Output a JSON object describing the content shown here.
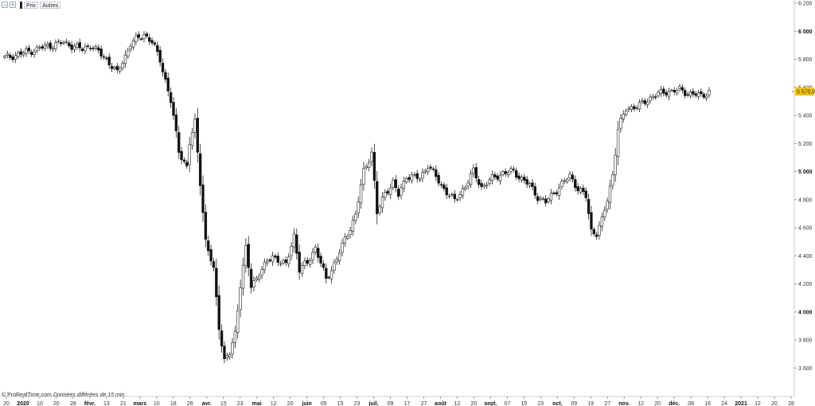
{
  "toolbar": {
    "buttons": [
      "zoom-out",
      "zoom-in"
    ],
    "price_label": "Prix",
    "others_label": "Autres"
  },
  "footer": {
    "source": "© ProRealTime.com",
    "delay_note": "Données différées de 15 min"
  },
  "colors": {
    "up": "#ffffff",
    "down": "#111111",
    "wick": "#222222",
    "axis": "#cfcfcf",
    "price_tag": "#f2c40c"
  },
  "chart_data": {
    "type": "candlestick",
    "ylim": [
      3500,
      6200
    ],
    "y_ticks": [
      {
        "v": 6200,
        "label": "6 200",
        "bold": false
      },
      {
        "v": 6000,
        "label": "6 000",
        "bold": true
      },
      {
        "v": 5800,
        "label": "5 800",
        "bold": false
      },
      {
        "v": 5600,
        "label": "5 600",
        "bold": false
      },
      {
        "v": 5400,
        "label": "5 400",
        "bold": false
      },
      {
        "v": 5200,
        "label": "5 200",
        "bold": false
      },
      {
        "v": 5000,
        "label": "5 000",
        "bold": true
      },
      {
        "v": 4800,
        "label": "4 800",
        "bold": false
      },
      {
        "v": 4600,
        "label": "4 600",
        "bold": false
      },
      {
        "v": 4400,
        "label": "4 400",
        "bold": false
      },
      {
        "v": 4200,
        "label": "4 200",
        "bold": false
      },
      {
        "v": 4000,
        "label": "4 000",
        "bold": true
      },
      {
        "v": 3800,
        "label": "3 800",
        "bold": false
      },
      {
        "v": 3600,
        "label": "3 600",
        "bold": false
      }
    ],
    "x_ticks": [
      {
        "label": "20",
        "bold": false
      },
      {
        "label": "2020",
        "bold": true
      },
      {
        "label": "10",
        "bold": false
      },
      {
        "label": "20",
        "bold": false
      },
      {
        "label": "28",
        "bold": false
      },
      {
        "label": "févr.",
        "bold": true
      },
      {
        "label": "13",
        "bold": false
      },
      {
        "label": "21",
        "bold": false
      },
      {
        "label": "mars",
        "bold": true
      },
      {
        "label": "10",
        "bold": false
      },
      {
        "label": "18",
        "bold": false
      },
      {
        "label": "26",
        "bold": false
      },
      {
        "label": "avr.",
        "bold": true
      },
      {
        "label": "15",
        "bold": false
      },
      {
        "label": "23",
        "bold": false
      },
      {
        "label": "mai",
        "bold": true
      },
      {
        "label": "12",
        "bold": false
      },
      {
        "label": "20",
        "bold": false
      },
      {
        "label": "juin",
        "bold": true
      },
      {
        "label": "05",
        "bold": false
      },
      {
        "label": "15",
        "bold": false
      },
      {
        "label": "23",
        "bold": false
      },
      {
        "label": "juil.",
        "bold": true
      },
      {
        "label": "09",
        "bold": false
      },
      {
        "label": "17",
        "bold": false
      },
      {
        "label": "27",
        "bold": false
      },
      {
        "label": "août",
        "bold": true
      },
      {
        "label": "12",
        "bold": false
      },
      {
        "label": "20",
        "bold": false
      },
      {
        "label": "sept.",
        "bold": true
      },
      {
        "label": "07",
        "bold": false
      },
      {
        "label": "15",
        "bold": false
      },
      {
        "label": "23",
        "bold": false
      },
      {
        "label": "oct.",
        "bold": true
      },
      {
        "label": "09",
        "bold": false
      },
      {
        "label": "19",
        "bold": false
      },
      {
        "label": "27",
        "bold": false
      },
      {
        "label": "nov.",
        "bold": true
      },
      {
        "label": "12",
        "bold": false
      },
      {
        "label": "20",
        "bold": false
      },
      {
        "label": "déc.",
        "bold": true
      },
      {
        "label": "08",
        "bold": false
      },
      {
        "label": "16",
        "bold": false
      },
      {
        "label": "24",
        "bold": false
      },
      {
        "label": "2021",
        "bold": true
      },
      {
        "label": "12",
        "bold": false
      },
      {
        "label": "20",
        "bold": false
      },
      {
        "label": "28",
        "bold": false
      }
    ],
    "last_price": {
      "value": 5570.0,
      "label": "5 570,0"
    },
    "keypoints": [
      [
        0,
        5810
      ],
      [
        8,
        5850
      ],
      [
        15,
        5890
      ],
      [
        22,
        5920
      ],
      [
        29,
        5870
      ],
      [
        32,
        5900
      ],
      [
        38,
        5800
      ],
      [
        42,
        5700
      ],
      [
        47,
        5910
      ],
      [
        52,
        5980
      ],
      [
        55,
        5920
      ],
      [
        58,
        5800
      ],
      [
        62,
        5500
      ],
      [
        65,
        5150
      ],
      [
        68,
        5030
      ],
      [
        69,
        5200
      ],
      [
        71,
        5350
      ],
      [
        73,
        4930
      ],
      [
        75,
        4500
      ],
      [
        78,
        4300
      ],
      [
        80,
        3900
      ],
      [
        82,
        3650
      ],
      [
        84,
        3700
      ],
      [
        86,
        3850
      ],
      [
        88,
        4200
      ],
      [
        90,
        4450
      ],
      [
        92,
        4180
      ],
      [
        95,
        4280
      ],
      [
        100,
        4400
      ],
      [
        105,
        4330
      ],
      [
        108,
        4550
      ],
      [
        110,
        4300
      ],
      [
        113,
        4350
      ],
      [
        116,
        4460
      ],
      [
        120,
        4230
      ],
      [
        124,
        4380
      ],
      [
        128,
        4560
      ],
      [
        131,
        4690
      ],
      [
        134,
        5000
      ],
      [
        137,
        5140
      ],
      [
        139,
        4700
      ],
      [
        142,
        4850
      ],
      [
        145,
        4920
      ],
      [
        147,
        4830
      ],
      [
        150,
        4970
      ],
      [
        155,
        4950
      ],
      [
        158,
        5050
      ],
      [
        163,
        4900
      ],
      [
        168,
        4790
      ],
      [
        172,
        4900
      ],
      [
        175,
        5000
      ],
      [
        178,
        4890
      ],
      [
        182,
        4950
      ],
      [
        186,
        4990
      ],
      [
        190,
        5000
      ],
      [
        193,
        4950
      ],
      [
        196,
        4900
      ],
      [
        199,
        4820
      ],
      [
        202,
        4780
      ],
      [
        205,
        4850
      ],
      [
        208,
        4910
      ],
      [
        211,
        4970
      ],
      [
        214,
        4880
      ],
      [
        217,
        4820
      ],
      [
        219,
        4580
      ],
      [
        221,
        4560
      ],
      [
        223,
        4650
      ],
      [
        225,
        4800
      ],
      [
        227,
        4980
      ],
      [
        229,
        5300
      ],
      [
        232,
        5450
      ],
      [
        237,
        5470
      ],
      [
        242,
        5540
      ],
      [
        247,
        5570
      ],
      [
        252,
        5580
      ],
      [
        256,
        5555
      ],
      [
        260,
        5540
      ],
      [
        263,
        5570
      ]
    ]
  }
}
